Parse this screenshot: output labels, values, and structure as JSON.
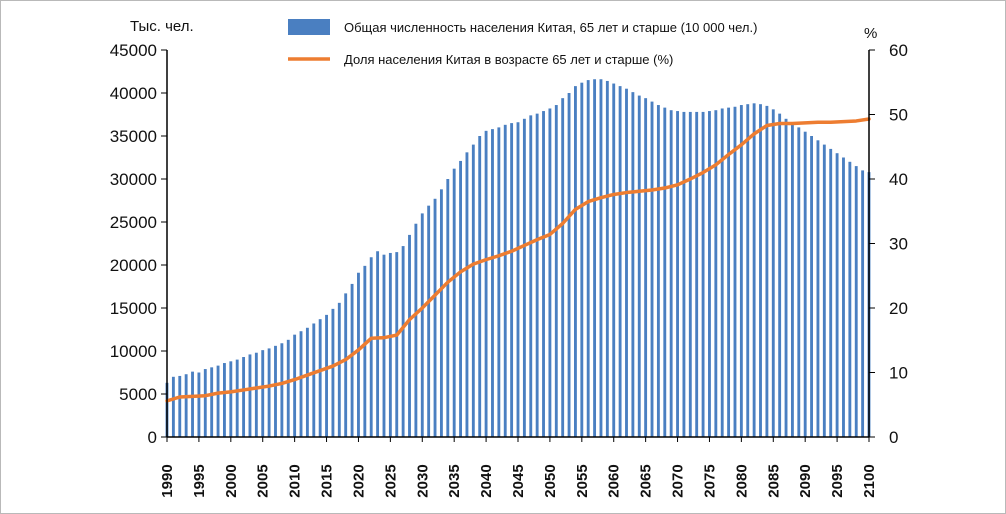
{
  "chart_data": {
    "type": "bar+line",
    "left_axis_unit": "Тыс. чел.",
    "right_axis_unit": "%",
    "left_ylim": [
      0,
      45000
    ],
    "left_ticks": [
      "0",
      "5000",
      "10000",
      "15000",
      "20000",
      "25000",
      "30000",
      "35000",
      "40000",
      "45000"
    ],
    "right_ylim": [
      0,
      60
    ],
    "right_ticks": [
      "0",
      "10",
      "20",
      "30",
      "40",
      "50",
      "60"
    ],
    "x_tick_labels": [
      "1990",
      "1995",
      "2000",
      "2005",
      "2010",
      "2015",
      "2020",
      "2025",
      "2030",
      "2035",
      "2040",
      "2045",
      "2050",
      "2055",
      "2060",
      "2065",
      "2070",
      "2075",
      "2080",
      "2085",
      "2090",
      "2095",
      "2100"
    ],
    "xlim": [
      1990,
      2100
    ],
    "grid": false,
    "legend_position": "top",
    "series": [
      {
        "name": "Общая численность населения Китая, 65 лет и старше (10 000 чел.)",
        "type": "bar",
        "color": "#4a7fc1",
        "x": [
          1990,
          1991,
          1992,
          1993,
          1994,
          1995,
          1996,
          1997,
          1998,
          1999,
          2000,
          2001,
          2002,
          2003,
          2004,
          2005,
          2006,
          2007,
          2008,
          2009,
          2010,
          2011,
          2012,
          2013,
          2014,
          2015,
          2016,
          2017,
          2018,
          2019,
          2020,
          2021,
          2022,
          2023,
          2024,
          2025,
          2026,
          2027,
          2028,
          2029,
          2030,
          2031,
          2032,
          2033,
          2034,
          2035,
          2036,
          2037,
          2038,
          2039,
          2040,
          2041,
          2042,
          2043,
          2044,
          2045,
          2046,
          2047,
          2048,
          2049,
          2050,
          2051,
          2052,
          2053,
          2054,
          2055,
          2056,
          2057,
          2058,
          2059,
          2060,
          2061,
          2062,
          2063,
          2064,
          2065,
          2066,
          2067,
          2068,
          2069,
          2070,
          2071,
          2072,
          2073,
          2074,
          2075,
          2076,
          2077,
          2078,
          2079,
          2080,
          2081,
          2082,
          2083,
          2084,
          2085,
          2086,
          2087,
          2088,
          2089,
          2090,
          2091,
          2092,
          2093,
          2094,
          2095,
          2096,
          2097,
          2098,
          2099,
          2100
        ],
        "values": [
          6300,
          7000,
          7100,
          7300,
          7600,
          7500,
          7900,
          8100,
          8300,
          8600,
          8800,
          9000,
          9300,
          9600,
          9800,
          10100,
          10300,
          10600,
          10900,
          11300,
          11900,
          12300,
          12700,
          13200,
          13700,
          14200,
          14900,
          15600,
          16700,
          17800,
          19100,
          19900,
          20900,
          21600,
          21200,
          21400,
          21500,
          22200,
          23500,
          24800,
          26000,
          26900,
          27700,
          28800,
          30000,
          31200,
          32100,
          33100,
          34000,
          35000,
          35600,
          35800,
          36000,
          36300,
          36500,
          36600,
          37000,
          37400,
          37600,
          37900,
          38200,
          38600,
          39400,
          40000,
          40800,
          41200,
          41500,
          41600,
          41600,
          41400,
          41100,
          40800,
          40500,
          40100,
          39700,
          39400,
          39000,
          38600,
          38300,
          38000,
          37900,
          37800,
          37800,
          37800,
          37800,
          37900,
          38000,
          38200,
          38300,
          38400,
          38600,
          38700,
          38800,
          38700,
          38500,
          38100,
          37600,
          37000,
          36500,
          36000,
          35500,
          35000,
          34500,
          34000,
          33500,
          33000,
          32500,
          32000,
          31500,
          31000,
          30800
        ]
      },
      {
        "name": "Доля населения Китая в возрасте 65 лет и старше (%)",
        "type": "line",
        "color": "#ed7d31",
        "x": [
          1990,
          1992,
          1994,
          1996,
          1998,
          2000,
          2002,
          2004,
          2006,
          2008,
          2010,
          2012,
          2014,
          2016,
          2018,
          2020,
          2022,
          2024,
          2026,
          2028,
          2030,
          2032,
          2034,
          2036,
          2038,
          2040,
          2042,
          2044,
          2046,
          2048,
          2050,
          2052,
          2054,
          2056,
          2058,
          2060,
          2062,
          2064,
          2066,
          2068,
          2070,
          2072,
          2074,
          2076,
          2078,
          2080,
          2082,
          2084,
          2086,
          2088,
          2090,
          2092,
          2094,
          2096,
          2098,
          2100
        ],
        "values": [
          5.6,
          6.2,
          6.3,
          6.4,
          6.8,
          7.0,
          7.3,
          7.6,
          7.9,
          8.3,
          8.9,
          9.6,
          10.3,
          11.0,
          12.0,
          13.5,
          15.3,
          15.4,
          15.8,
          18.2,
          20.0,
          22.0,
          24.0,
          25.6,
          26.8,
          27.5,
          28.1,
          28.8,
          29.7,
          30.6,
          31.4,
          33.1,
          35.3,
          36.5,
          37.1,
          37.6,
          37.9,
          38.1,
          38.3,
          38.6,
          39.1,
          40.0,
          41.0,
          42.2,
          43.8,
          45.3,
          47.0,
          48.3,
          48.6,
          48.6,
          48.7,
          48.8,
          48.8,
          48.9,
          49.0,
          49.3
        ]
      }
    ]
  }
}
